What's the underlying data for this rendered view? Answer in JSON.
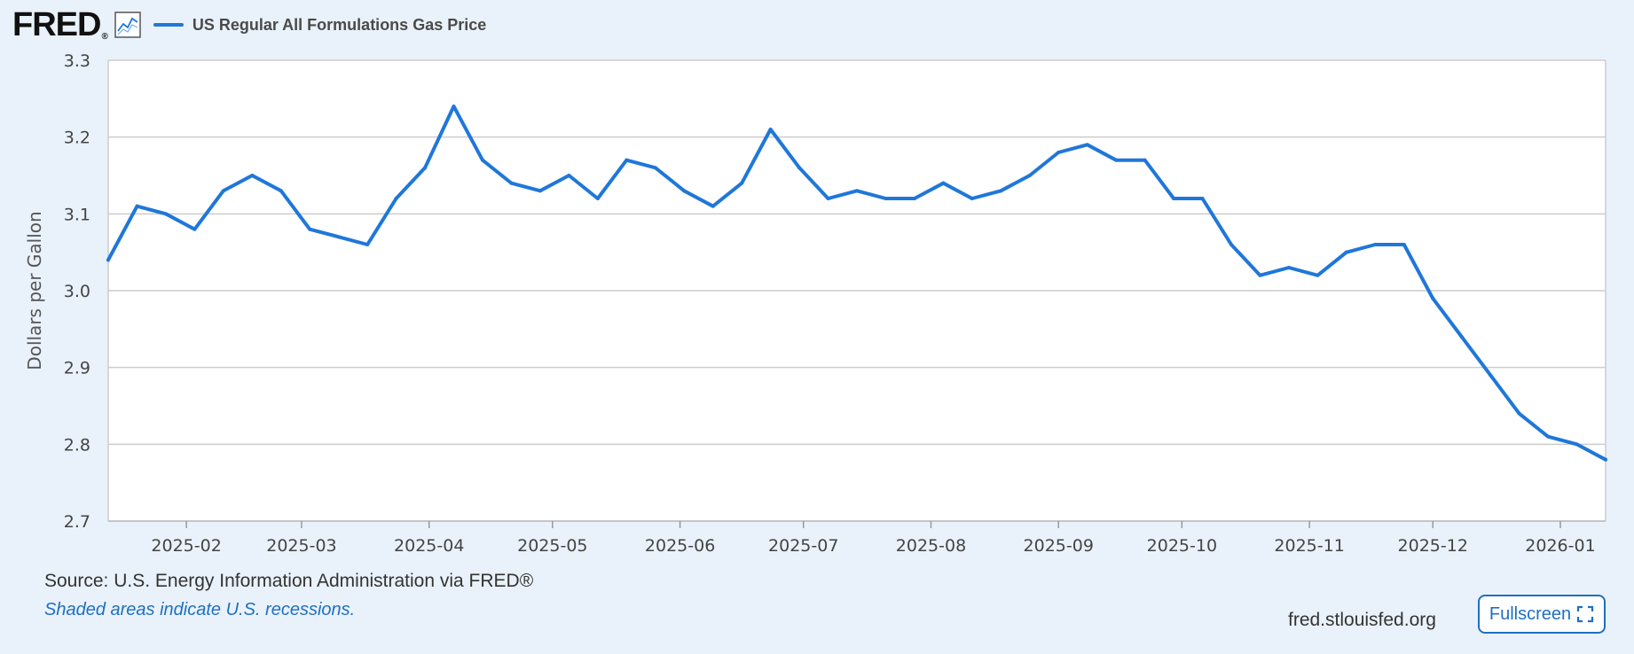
{
  "header": {
    "logo_text": "FRED",
    "logo_mark": "®",
    "graph_icon": "line-graph-icon",
    "legend_label": "US Regular All Formulations Gas Price"
  },
  "colors": {
    "series": "#1f77d9",
    "background": "#e9f2fa",
    "grid": "#cccccc",
    "link": "#1f6fc1"
  },
  "chart_data": {
    "type": "line",
    "title": "",
    "ylabel": "Dollars per Gallon",
    "xlabel": "",
    "ylim": [
      2.7,
      3.3
    ],
    "yticks": [
      "2.7",
      "2.8",
      "2.9",
      "3.0",
      "3.1",
      "3.2",
      "3.3"
    ],
    "xlim": [
      "2025-01-13",
      "2026-01-12"
    ],
    "xticks": [
      "2025-02",
      "2025-03",
      "2025-04",
      "2025-05",
      "2025-06",
      "2025-07",
      "2025-08",
      "2025-09",
      "2025-10",
      "2025-11",
      "2025-12",
      "2026-01"
    ],
    "grid": true,
    "legend": "top-left",
    "series": [
      {
        "name": "US Regular All Formulations Gas Price",
        "x": [
          "2025-01-13",
          "2025-01-20",
          "2025-01-27",
          "2025-02-03",
          "2025-02-10",
          "2025-02-17",
          "2025-02-24",
          "2025-03-03",
          "2025-03-10",
          "2025-03-17",
          "2025-03-24",
          "2025-03-31",
          "2025-04-07",
          "2025-04-14",
          "2025-04-21",
          "2025-04-28",
          "2025-05-05",
          "2025-05-12",
          "2025-05-19",
          "2025-05-26",
          "2025-06-02",
          "2025-06-09",
          "2025-06-16",
          "2025-06-23",
          "2025-06-30",
          "2025-07-07",
          "2025-07-14",
          "2025-07-21",
          "2025-07-28",
          "2025-08-04",
          "2025-08-11",
          "2025-08-18",
          "2025-08-25",
          "2025-09-01",
          "2025-09-08",
          "2025-09-15",
          "2025-09-22",
          "2025-09-29",
          "2025-10-06",
          "2025-10-13",
          "2025-10-20",
          "2025-10-27",
          "2025-11-03",
          "2025-11-10",
          "2025-11-17",
          "2025-11-24",
          "2025-12-01",
          "2025-12-08",
          "2025-12-15",
          "2025-12-22",
          "2025-12-29",
          "2026-01-05",
          "2026-01-12"
        ],
        "values": [
          3.04,
          3.11,
          3.1,
          3.08,
          3.13,
          3.15,
          3.13,
          3.08,
          3.07,
          3.06,
          3.12,
          3.16,
          3.24,
          3.17,
          3.14,
          3.13,
          3.15,
          3.12,
          3.17,
          3.16,
          3.13,
          3.11,
          3.14,
          3.21,
          3.16,
          3.12,
          3.13,
          3.12,
          3.12,
          3.14,
          3.12,
          3.13,
          3.15,
          3.18,
          3.19,
          3.17,
          3.17,
          3.12,
          3.12,
          3.06,
          3.02,
          3.03,
          3.02,
          3.05,
          3.06,
          3.06,
          2.99,
          2.94,
          2.89,
          2.84,
          2.81,
          2.8,
          2.78
        ]
      }
    ]
  },
  "footer": {
    "source": "Source: U.S. Energy Information Administration via FRED®",
    "note": "Shaded areas indicate U.S. recessions.",
    "site": "fred.stlouisfed.org",
    "fullscreen_label": "Fullscreen",
    "fullscreen_icon": "expand-icon"
  }
}
